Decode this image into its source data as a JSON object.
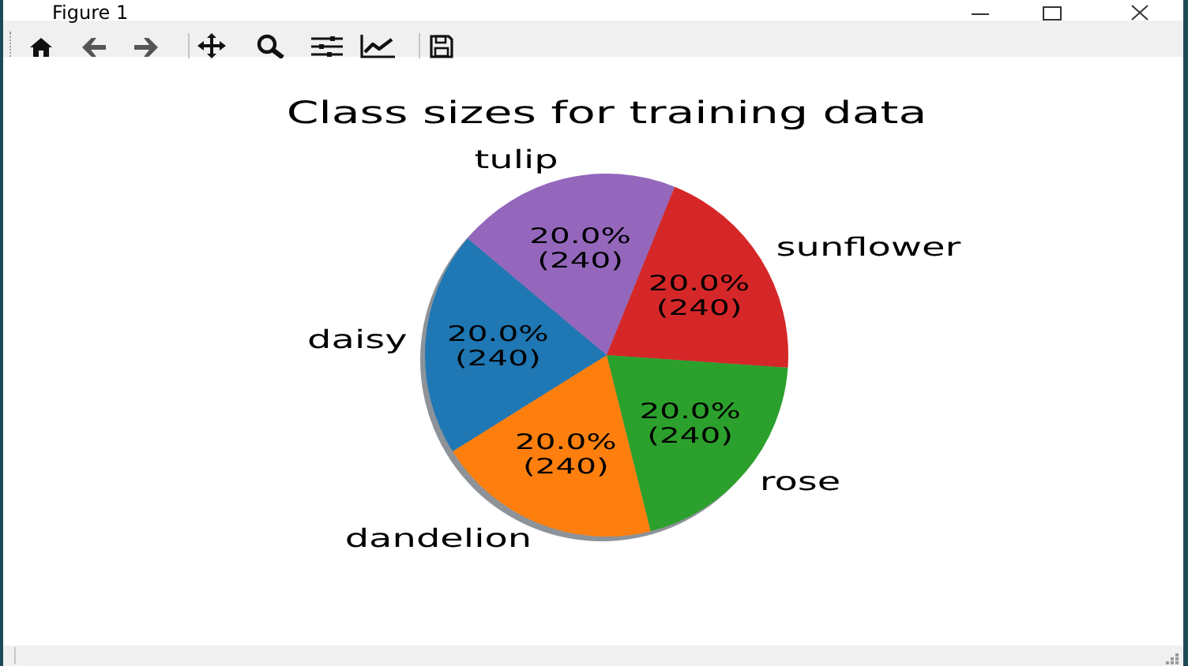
{
  "chart_data": {
    "type": "pie",
    "title": "Class sizes for training data",
    "categories": [
      "tulip",
      "sunflower",
      "rose",
      "dandelion",
      "daisy"
    ],
    "values": [
      240,
      240,
      240,
      240,
      240
    ],
    "colors": [
      "#9467bd",
      "#d62728",
      "#2ca02c",
      "#ff7f0e",
      "#1f77b4"
    ],
    "value_labels": [
      "20.0%\n(240)",
      "20.0%\n(240)",
      "20.0%\n(240)",
      "20.0%\n(240)",
      "20.0%\n(240)"
    ],
    "annotations": [
      "Figure 1"
    ]
  }
}
